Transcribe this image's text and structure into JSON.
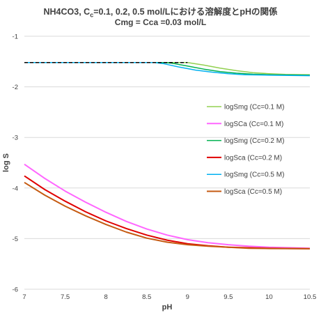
{
  "chart_data": {
    "type": "line",
    "title_pre": "NH4CO3, C",
    "title_sub": "c",
    "title_post": "=0.1, 0.2, 0.5 mol/Lにおける溶解度とpHの関係",
    "subtitle": "Cmg = Cca =0.03 mol/L",
    "xlabel": "pH",
    "ylabel": "log S",
    "xlim": [
      7,
      10.5
    ],
    "ylim": [
      -6,
      -1
    ],
    "xticks": [
      7,
      7.5,
      8,
      8.5,
      9,
      9.5,
      10,
      10.5
    ],
    "yticks": [
      -6,
      -5,
      -4,
      -3,
      -2,
      -1
    ],
    "grid": "horizontal",
    "legend_position": "right-middle",
    "series": [
      {
        "name": "logSmg (Cc=0.1 M)",
        "color": "#92d050",
        "x": [
          7,
          8,
          8.9,
          9.0,
          9.2,
          9.4,
          9.6,
          9.8,
          10,
          10.2,
          10.5
        ],
        "y": [
          -1.52,
          -1.52,
          -1.52,
          -1.52,
          -1.57,
          -1.63,
          -1.68,
          -1.72,
          -1.74,
          -1.755,
          -1.76
        ]
      },
      {
        "name": "logSCa (Cc=0.1 M)",
        "color": "#ff66ff",
        "x": [
          7,
          7.25,
          7.5,
          7.75,
          8,
          8.25,
          8.5,
          8.75,
          9,
          9.25,
          9.5,
          9.75,
          10,
          10.5
        ],
        "y": [
          -3.53,
          -3.81,
          -4.06,
          -4.28,
          -4.48,
          -4.66,
          -4.81,
          -4.93,
          -5.02,
          -5.08,
          -5.12,
          -5.15,
          -5.17,
          -5.19
        ]
      },
      {
        "name": "logSmg (Cc=0.2 M)",
        "color": "#00b050",
        "x": [
          7,
          8,
          8.7,
          8.8,
          9.0,
          9.2,
          9.4,
          9.6,
          9.8,
          10,
          10.2,
          10.5
        ],
        "y": [
          -1.52,
          -1.52,
          -1.52,
          -1.53,
          -1.59,
          -1.65,
          -1.7,
          -1.73,
          -1.75,
          -1.76,
          -1.765,
          -1.77
        ]
      },
      {
        "name": "logSca (Cc=0.2 M)",
        "color": "#e00000",
        "x": [
          7,
          7.25,
          7.5,
          7.75,
          8,
          8.25,
          8.5,
          8.75,
          9,
          9.25,
          9.5,
          9.75,
          10,
          10.5
        ],
        "y": [
          -3.76,
          -4.03,
          -4.26,
          -4.47,
          -4.65,
          -4.8,
          -4.93,
          -5.03,
          -5.1,
          -5.14,
          -5.17,
          -5.18,
          -5.19,
          -5.2
        ]
      },
      {
        "name": "logSmg (Cc=0.5 M)",
        "color": "#00b0f0",
        "x": [
          7,
          8,
          8.6,
          8.7,
          8.9,
          9.1,
          9.3,
          9.5,
          9.7,
          10,
          10.5
        ],
        "y": [
          -1.52,
          -1.52,
          -1.52,
          -1.54,
          -1.61,
          -1.67,
          -1.71,
          -1.74,
          -1.76,
          -1.77,
          -1.78
        ]
      },
      {
        "name": "logSca (Cc=0.5 M)",
        "color": "#c55a11",
        "x": [
          7,
          7.25,
          7.5,
          7.75,
          8,
          8.25,
          8.5,
          8.75,
          9,
          9.25,
          9.5,
          9.75,
          10,
          10.5
        ],
        "y": [
          -3.89,
          -4.14,
          -4.36,
          -4.55,
          -4.72,
          -4.87,
          -4.99,
          -5.07,
          -5.12,
          -5.15,
          -5.17,
          -5.19,
          -5.195,
          -5.2
        ]
      }
    ],
    "reference_line": {
      "style": "dashed",
      "color": "#000000",
      "x": [
        7,
        9.0
      ],
      "y": [
        -1.52,
        -1.52
      ]
    }
  }
}
